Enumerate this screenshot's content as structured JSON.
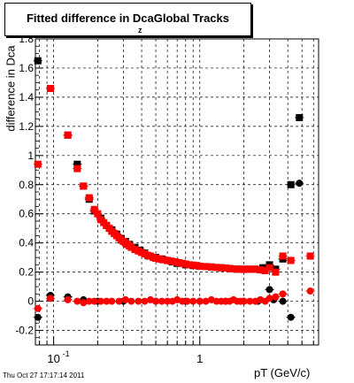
{
  "title": "Fitted difference in Dca",
  "title_suffix": "Global Tracks",
  "title_subscript": "z",
  "timestamp": "Thu Oct 27 17:17:14 2011",
  "chart_data": {
    "type": "scatter",
    "xlabel": "pT (GeV/c)",
    "ylabel": "difference in Dca",
    "xscale": "log",
    "xlim": [
      0.075,
      6.5
    ],
    "ylim": [
      -0.3,
      1.8
    ],
    "yticks": [
      "-0.2",
      "0",
      "0.2",
      "0.4",
      "0.6",
      "0.8",
      "1",
      "1.2",
      "1.4",
      "1.6",
      "1.8"
    ],
    "xticks": [
      {
        "value": 0.1,
        "label": "10",
        "exp": "-1"
      },
      {
        "value": 1,
        "label": "1",
        "exp": ""
      }
    ],
    "grid": true,
    "series": [
      {
        "color": "#000000",
        "marker": "square",
        "x": [
          0.078,
          0.095,
          0.125,
          0.145,
          0.16,
          0.175,
          0.19,
          0.21,
          0.23,
          0.25,
          0.27,
          0.29,
          0.31,
          0.33,
          0.36,
          0.39,
          0.42,
          0.45,
          0.5,
          0.55,
          0.6,
          0.65,
          0.7,
          0.8,
          0.9,
          1.0,
          1.2,
          1.4,
          1.6,
          1.8,
          2.0,
          2.2,
          2.4,
          2.7,
          3.0,
          3.3,
          3.7,
          4.2,
          4.8
        ],
        "y": [
          1.65,
          1.46,
          1.14,
          0.94,
          0.79,
          0.7,
          0.62,
          0.57,
          0.52,
          0.49,
          0.46,
          0.43,
          0.41,
          0.39,
          0.37,
          0.35,
          0.33,
          0.31,
          0.3,
          0.29,
          0.28,
          0.27,
          0.26,
          0.25,
          0.245,
          0.24,
          0.235,
          0.23,
          0.225,
          0.22,
          0.22,
          0.22,
          0.22,
          0.23,
          0.25,
          0.22,
          0.29,
          0.8,
          1.26
        ]
      },
      {
        "color": "#000000",
        "marker": "circle",
        "x": [
          0.078,
          0.095,
          0.125,
          0.16,
          0.2,
          0.3,
          0.5,
          0.8,
          1.0,
          1.5,
          2.0,
          2.5,
          3.0,
          3.2,
          3.7,
          4.2,
          4.8
        ],
        "y": [
          -0.11,
          0.04,
          0.03,
          0.01,
          0.0,
          0.0,
          0.0,
          0.0,
          0.0,
          0.0,
          0.0,
          0.0,
          0.08,
          0.01,
          0.0,
          -0.11,
          0.81
        ]
      },
      {
        "color": "#ff0000",
        "marker": "square",
        "x": [
          0.078,
          0.095,
          0.125,
          0.145,
          0.16,
          0.175,
          0.19,
          0.2,
          0.21,
          0.22,
          0.23,
          0.24,
          0.25,
          0.26,
          0.27,
          0.28,
          0.29,
          0.3,
          0.31,
          0.32,
          0.33,
          0.34,
          0.36,
          0.38,
          0.4,
          0.42,
          0.44,
          0.46,
          0.48,
          0.5,
          0.53,
          0.56,
          0.6,
          0.64,
          0.68,
          0.72,
          0.76,
          0.8,
          0.85,
          0.9,
          0.95,
          1.0,
          1.1,
          1.2,
          1.3,
          1.4,
          1.5,
          1.6,
          1.7,
          1.8,
          1.9,
          2.0,
          2.2,
          2.4,
          2.6,
          2.8,
          3.0,
          3.3,
          3.7,
          4.2,
          5.7
        ],
        "y": [
          0.94,
          1.46,
          1.14,
          0.91,
          0.79,
          0.71,
          0.63,
          0.6,
          0.56,
          0.54,
          0.52,
          0.5,
          0.48,
          0.465,
          0.45,
          0.435,
          0.42,
          0.41,
          0.4,
          0.39,
          0.38,
          0.37,
          0.355,
          0.345,
          0.335,
          0.325,
          0.315,
          0.31,
          0.3,
          0.295,
          0.29,
          0.285,
          0.28,
          0.275,
          0.27,
          0.265,
          0.26,
          0.255,
          0.25,
          0.248,
          0.245,
          0.24,
          0.238,
          0.235,
          0.232,
          0.23,
          0.228,
          0.225,
          0.222,
          0.22,
          0.22,
          0.218,
          0.22,
          0.22,
          0.215,
          0.21,
          0.23,
          0.2,
          0.31,
          0.28,
          0.31
        ]
      },
      {
        "color": "#ff0000",
        "marker": "circle",
        "x": [
          0.078,
          0.095,
          0.125,
          0.145,
          0.16,
          0.175,
          0.19,
          0.21,
          0.23,
          0.25,
          0.28,
          0.31,
          0.34,
          0.38,
          0.42,
          0.46,
          0.5,
          0.55,
          0.6,
          0.65,
          0.7,
          0.76,
          0.82,
          0.9,
          1.0,
          1.1,
          1.2,
          1.3,
          1.4,
          1.5,
          1.6,
          1.7,
          1.8,
          1.9,
          2.0,
          2.2,
          2.4,
          2.6,
          2.8,
          3.0,
          3.3,
          3.7,
          5.7
        ],
        "y": [
          -0.05,
          0.02,
          0.01,
          0.0,
          -0.01,
          0.0,
          0.0,
          0.0,
          0.0,
          0.0,
          0.0,
          0.01,
          0.0,
          0.0,
          0.0,
          0.01,
          0.0,
          0.0,
          0.0,
          0.0,
          0.01,
          0.0,
          0.0,
          0.0,
          0.0,
          0.0,
          0.01,
          0.0,
          0.0,
          0.0,
          0.0,
          0.01,
          0.0,
          0.0,
          0.0,
          0.0,
          0.0,
          0.01,
          0.0,
          0.02,
          0.03,
          0.05,
          0.07
        ]
      }
    ]
  }
}
